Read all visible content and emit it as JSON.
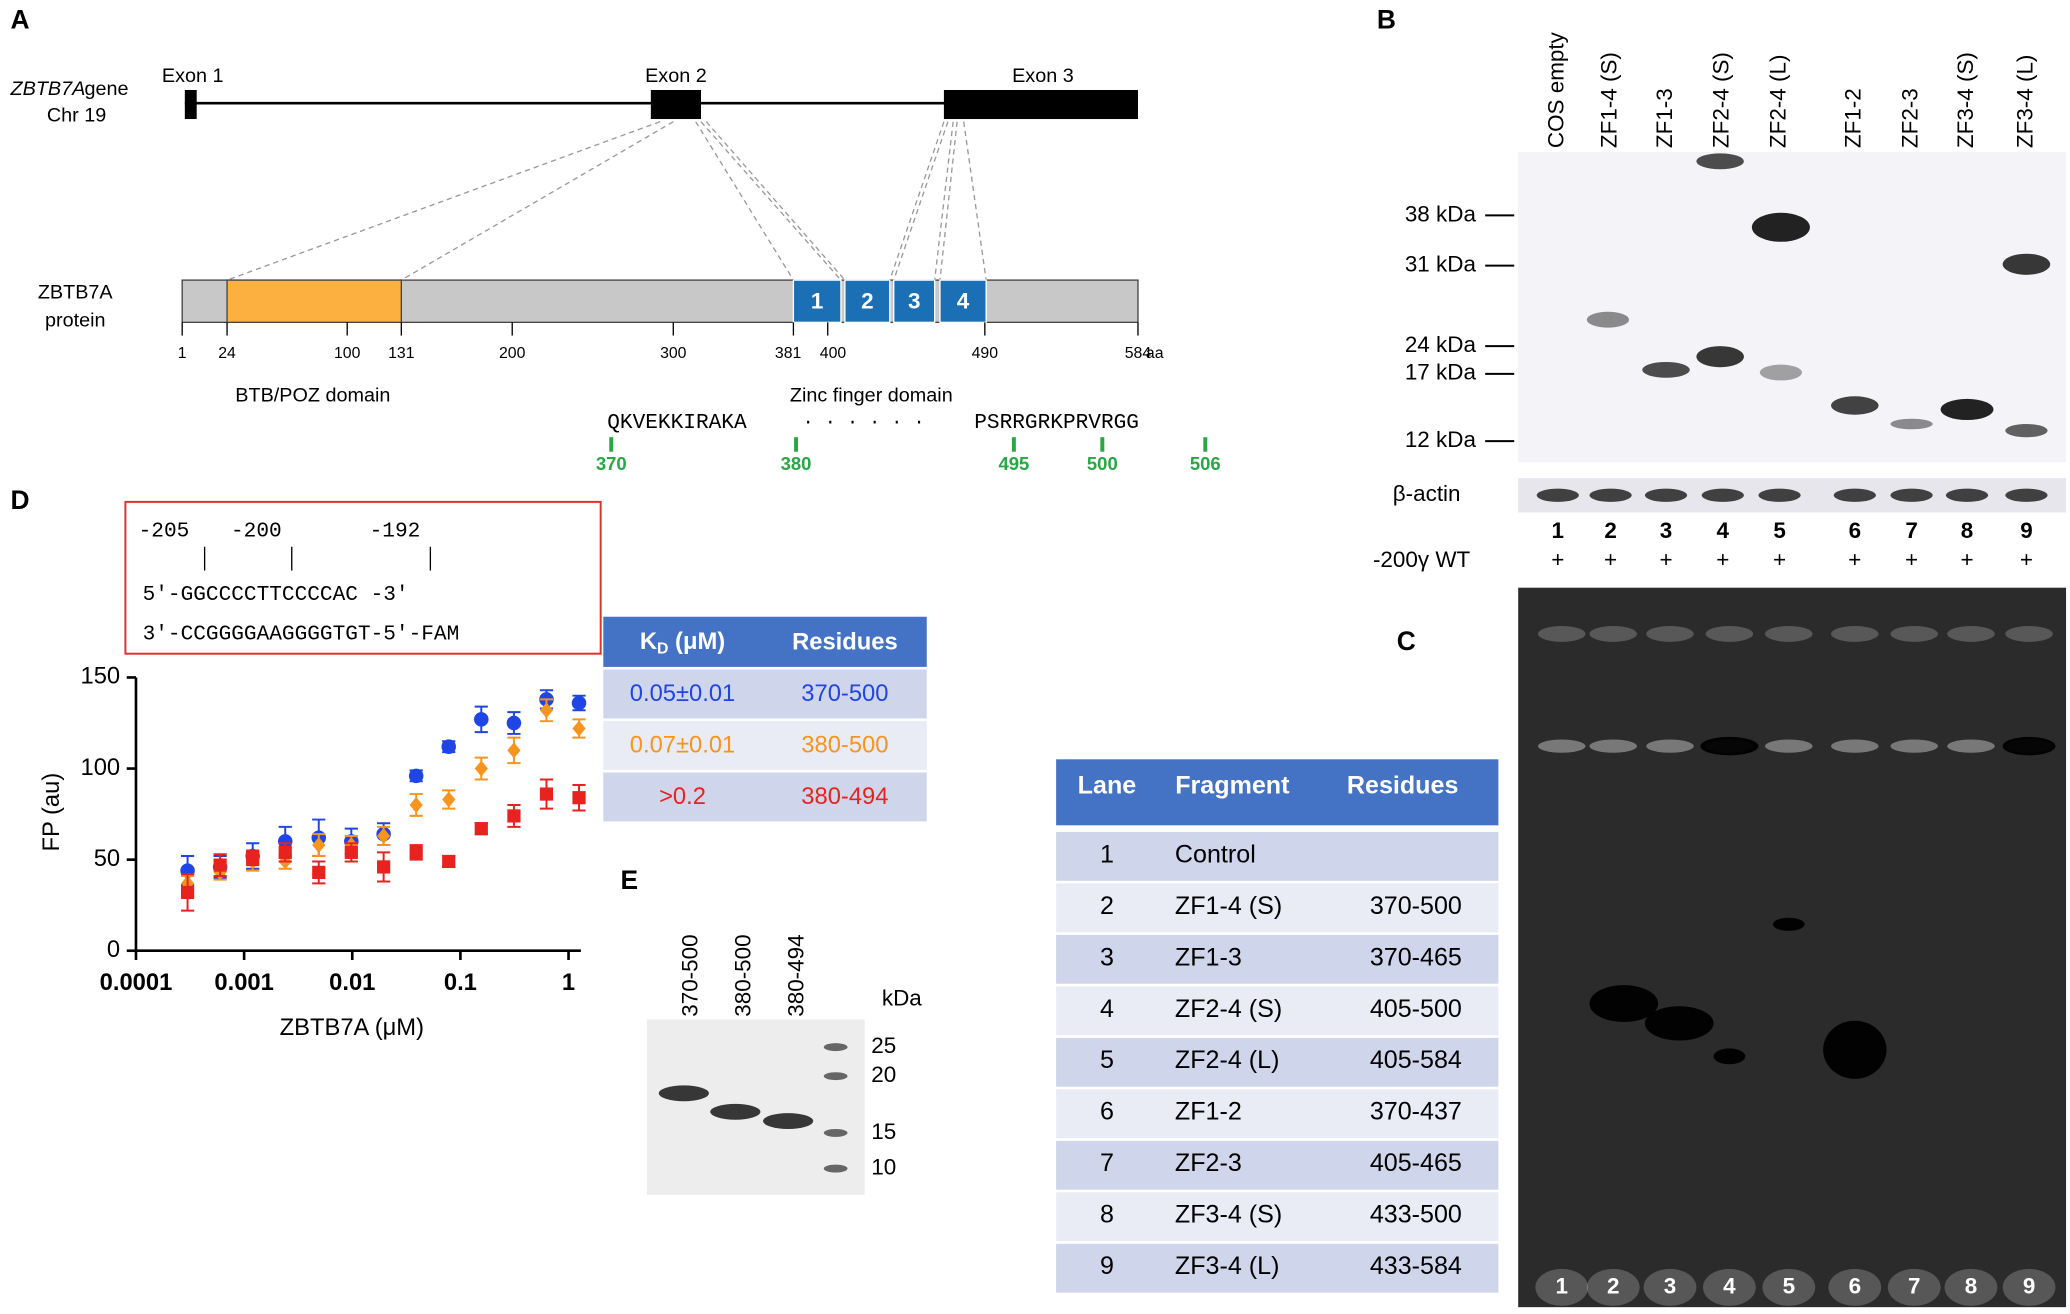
{
  "panel_a": {
    "label": "A",
    "gene_name": "ZBTB7A",
    "gene_suffix": "gene",
    "chromosome": "Chr 19",
    "exons": [
      "Exon 1",
      "Exon 2",
      "Exon 3"
    ],
    "protein_label": [
      "ZBTB7A",
      "protein"
    ],
    "zinc_fingers": [
      "1",
      "2",
      "3",
      "4"
    ],
    "positions": [
      "1",
      "24",
      "100",
      "131",
      "200",
      "300",
      "381",
      "400",
      "490",
      "584"
    ],
    "unit": "aa",
    "domains": [
      "BTB/POZ domain",
      "Zinc finger domain"
    ],
    "sequence_start": "QKVEKKIRAKA",
    "sequence_gap": "· · · · · ·",
    "sequence_end": "PSRRGRKPRVRGG",
    "residue_marks": [
      "370",
      "380",
      "495",
      "500",
      "506"
    ]
  },
  "panel_b": {
    "label": "B",
    "lanes": [
      "COS empty",
      "ZF1-4 (S)",
      "ZF1-3",
      "ZF2-4 (S)",
      "ZF2-4 (L)",
      "ZF1-2",
      "ZF2-3",
      "ZF3-4 (S)",
      "ZF3-4 (L)"
    ],
    "markers": [
      "38 kDa",
      "31 kDa",
      "24 kDa",
      "17 kDa",
      "12 kDa"
    ],
    "loading_control": "β-actin",
    "lane_numbers": [
      "1",
      "2",
      "3",
      "4",
      "5",
      "6",
      "7",
      "8",
      "9"
    ],
    "probe": "-200γ WT",
    "probe_added": [
      "+",
      "+",
      "+",
      "+",
      "+",
      "+",
      "+",
      "+",
      "+"
    ]
  },
  "panel_c": {
    "label": "C",
    "lane_numbers": [
      "1",
      "2",
      "3",
      "4",
      "5",
      "6",
      "7",
      "8",
      "9"
    ],
    "table": {
      "header": [
        "Lane",
        "Fragment",
        "Residues"
      ],
      "rows": [
        [
          "1",
          "Control"
        ],
        [
          "2",
          "ZF1-4 (S)",
          "370-500"
        ],
        [
          "3",
          "ZF1-3",
          "370-465"
        ],
        [
          "4",
          "ZF2-4 (S)",
          "405-500"
        ],
        [
          "5",
          "ZF2-4 (L)",
          "405-584"
        ],
        [
          "6",
          "ZF1-2",
          "370-437"
        ],
        [
          "7",
          "ZF2-3",
          "405-465"
        ],
        [
          "8",
          "ZF3-4 (S)",
          "433-500"
        ],
        [
          "9",
          "ZF3-4 (L)",
          "433-584"
        ]
      ]
    }
  },
  "panel_d": {
    "label": "D",
    "probe": {
      "positions": [
        "-205",
        "-200",
        "-192"
      ],
      "top_strand": "5′-GGCCCCTTCCCCAC -3′",
      "bottom_strand": "3′-CCGGGGAAGGGGTGT-5′-FAM"
    },
    "kd_table": {
      "header": [
        "K",
        "D",
        " (μM)",
        "Residues"
      ],
      "rows": [
        [
          "0.05±0.01",
          "370-500"
        ],
        [
          "0.07±0.01",
          "380-500"
        ],
        [
          ">0.2",
          "380-494"
        ]
      ]
    }
  },
  "chart_data": {
    "type": "scatter",
    "xlabel": "ZBTB7A (μM)",
    "ylabel": "FP (au)",
    "xscale": "log",
    "xlim": [
      0.0001,
      1.3
    ],
    "ylim": [
      0,
      150
    ],
    "xticks": [
      0.0001,
      0.001,
      0.01,
      0.1,
      1
    ],
    "yticks": [
      0,
      50,
      100,
      150
    ],
    "x": [
      0.0003,
      0.0006,
      0.0012,
      0.0024,
      0.0049,
      0.0098,
      0.0195,
      0.039,
      0.078,
      0.156,
      0.3125,
      0.625,
      1.25
    ],
    "series": [
      {
        "color": "#1f45e6",
        "marker": "circle",
        "values": [
          44,
          46,
          52,
          60,
          62,
          60,
          64,
          96,
          112,
          127,
          125,
          138,
          136
        ],
        "errors": [
          8,
          6,
          7,
          8,
          10,
          7,
          6,
          3,
          3,
          7,
          6,
          5,
          4
        ]
      },
      {
        "color": "#f7941d",
        "marker": "diamond",
        "values": [
          37,
          43,
          49,
          49,
          58,
          58,
          63,
          80,
          83,
          100,
          110,
          132,
          122
        ],
        "errors": [
          4,
          4,
          5,
          4,
          6,
          5,
          5,
          6,
          5,
          6,
          7,
          6,
          5
        ]
      },
      {
        "color": "#e8231f",
        "marker": "square",
        "values": [
          32,
          47,
          51,
          54,
          43,
          54,
          46,
          54,
          49,
          67,
          74,
          86,
          84
        ],
        "errors": [
          10,
          6,
          4,
          5,
          6,
          5,
          8,
          4,
          3,
          3,
          6,
          8,
          7
        ]
      }
    ]
  },
  "panel_e": {
    "label": "E",
    "lanes": [
      "370-500",
      "380-500",
      "380-494"
    ],
    "unit": "kDa",
    "markers": [
      "25",
      "20",
      "15",
      "10"
    ]
  }
}
